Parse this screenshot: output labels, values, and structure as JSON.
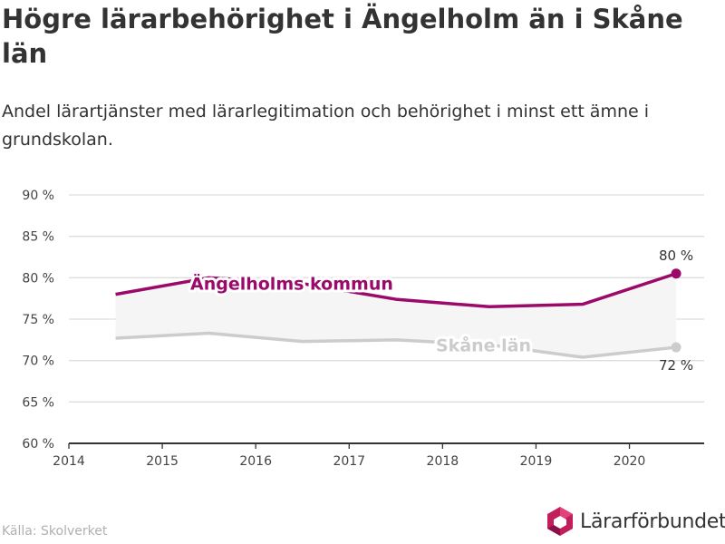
{
  "title": "Högre lärarbehörighet i Ängelholm än i Skåne län",
  "subtitle": "Andel lärartjänster med lärarlegitimation och behörighet i minst ett ämne i grundskolan.",
  "source": "Källa: Skolverket",
  "logo_text": "Lärarförbundet",
  "colors": {
    "angelholm": "#9b0a6b",
    "skane": "#cccccc",
    "gap_fill": "#f5f5f5",
    "grid": "#dddddd"
  },
  "chart_data": {
    "type": "line",
    "x": [
      2014.5,
      2015.5,
      2016.5,
      2017.5,
      2018.5,
      2019.5,
      2020.5
    ],
    "series": [
      {
        "name": "Ängelholms kommun",
        "values": [
          78.0,
          80.0,
          79.3,
          77.4,
          76.5,
          76.8,
          80.5
        ],
        "end_label": "80 %"
      },
      {
        "name": "Skåne län",
        "values": [
          72.7,
          73.3,
          72.3,
          72.5,
          71.9,
          70.4,
          71.6
        ],
        "end_label": "72 %"
      }
    ],
    "xticks": [
      "2014",
      "2015",
      "2016",
      "2017",
      "2018",
      "2019",
      "2020"
    ],
    "yticks": [
      "60 %",
      "65 %",
      "70 %",
      "75 %",
      "80 %",
      "85 %",
      "90 %"
    ],
    "xlim": [
      2014,
      2020.8
    ],
    "ylim": [
      60,
      90
    ],
    "grid": true
  }
}
